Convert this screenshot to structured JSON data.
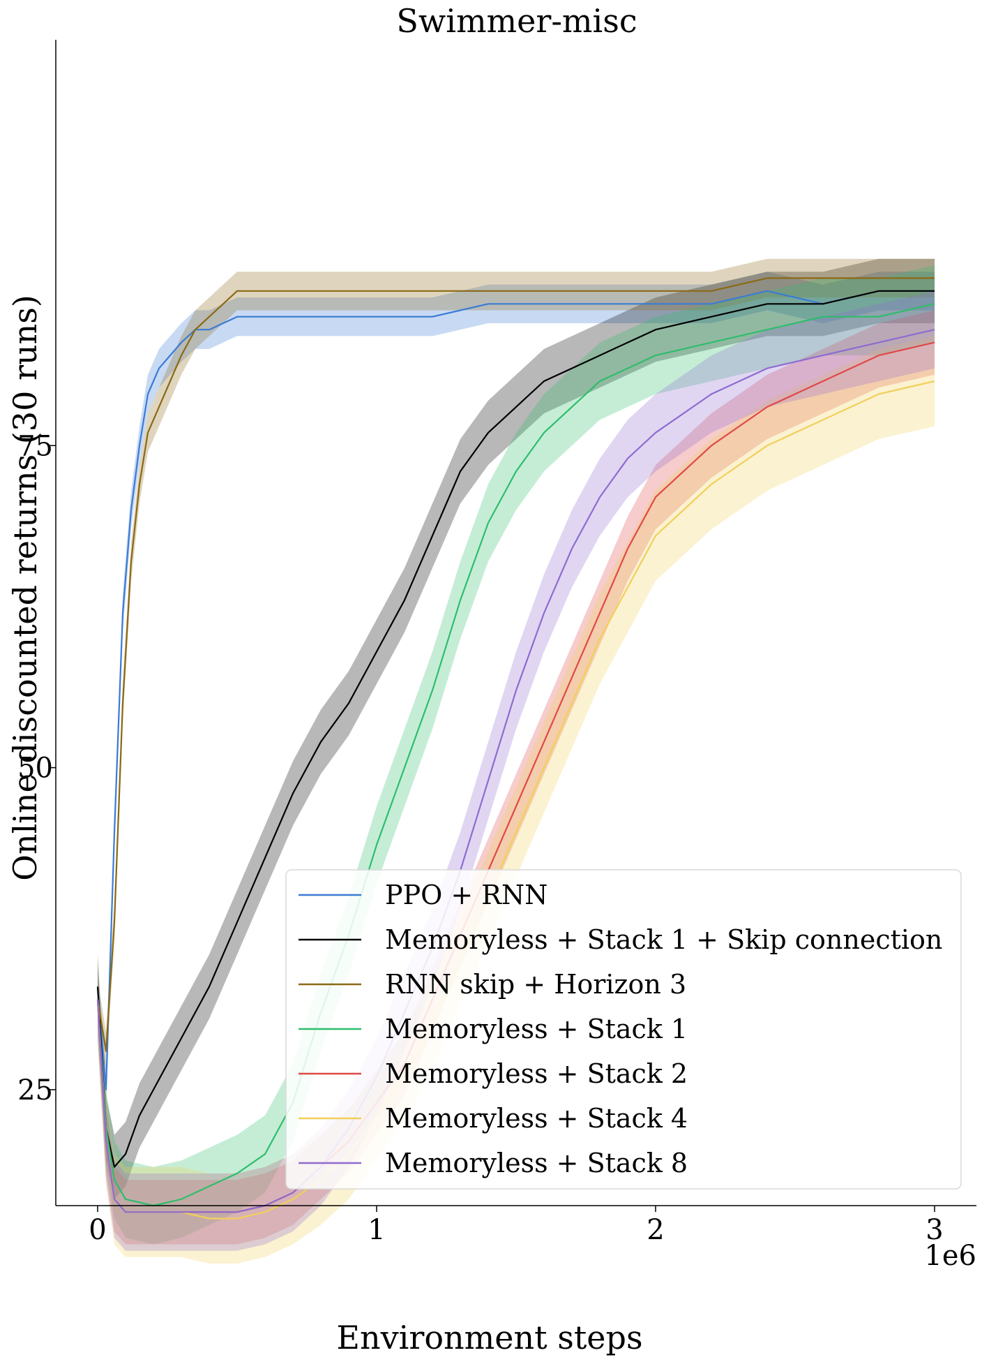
{
  "chart_data": {
    "type": "line",
    "title": "Swimmer-misc",
    "xlabel": "Environment steps",
    "ylabel": "Online discounted returns (30 runs)",
    "x_offset_label": "1e6",
    "xlim": [
      -0.15,
      3.15
    ],
    "ylim": [
      16,
      106.5
    ],
    "x_ticks": [
      0,
      1,
      2,
      3
    ],
    "x_tick_labels": [
      "0",
      "1",
      "2",
      "3"
    ],
    "y_ticks": [
      25,
      50,
      75
    ],
    "y_tick_labels": [
      "25",
      "50",
      "75"
    ],
    "grid": false,
    "legend_position": "lower-right",
    "series": [
      {
        "name": "PPO + RNN",
        "color": "#3a7bd5",
        "x": [
          0,
          0.03,
          0.06,
          0.09,
          0.12,
          0.15,
          0.18,
          0.22,
          0.26,
          0.3,
          0.35,
          0.4,
          0.5,
          0.6,
          0.8,
          1.0,
          1.2,
          1.4,
          1.6,
          1.8,
          2.0,
          2.2,
          2.4,
          2.6,
          2.8,
          3.0
        ],
        "y": [
          33,
          25,
          45,
          62,
          70,
          75,
          79,
          81,
          82,
          83,
          84,
          84,
          85,
          85,
          85,
          85,
          85,
          86,
          86,
          86,
          86,
          86,
          87,
          86,
          87,
          87
        ],
        "band": 1.5
      },
      {
        "name": "Memoryless + Stack 1 + Skip connection",
        "color": "#000000",
        "x": [
          0,
          0.03,
          0.06,
          0.1,
          0.15,
          0.2,
          0.3,
          0.4,
          0.5,
          0.6,
          0.7,
          0.8,
          0.9,
          1.0,
          1.1,
          1.2,
          1.3,
          1.4,
          1.5,
          1.6,
          1.7,
          1.8,
          1.9,
          2.0,
          2.2,
          2.4,
          2.6,
          2.8,
          3.0
        ],
        "y": [
          33,
          22,
          19,
          20,
          23,
          25,
          29,
          33,
          38,
          43,
          48,
          52,
          55,
          59,
          63,
          68,
          73,
          76,
          78,
          80,
          81,
          82,
          83,
          84,
          85,
          86,
          86,
          87,
          87
        ],
        "band": 2.5
      },
      {
        "name": "RNN skip + Horizon 3",
        "color": "#8b6914",
        "x": [
          0,
          0.03,
          0.06,
          0.09,
          0.12,
          0.15,
          0.18,
          0.22,
          0.26,
          0.3,
          0.35,
          0.4,
          0.45,
          0.5,
          0.6,
          0.8,
          1.0,
          1.2,
          1.4,
          1.6,
          1.8,
          2.0,
          2.2,
          2.4,
          2.6,
          2.8,
          3.0
        ],
        "y": [
          32,
          28,
          38,
          55,
          66,
          72,
          76,
          78,
          80,
          82,
          84,
          85,
          86,
          87,
          87,
          87,
          87,
          87,
          87,
          87,
          87,
          87,
          87,
          88,
          88,
          88,
          88
        ],
        "band": 1.5
      },
      {
        "name": "Memoryless + Stack 1",
        "color": "#2ebd6b",
        "x": [
          0,
          0.03,
          0.06,
          0.1,
          0.2,
          0.3,
          0.4,
          0.5,
          0.6,
          0.7,
          0.8,
          0.9,
          1.0,
          1.1,
          1.2,
          1.3,
          1.4,
          1.5,
          1.6,
          1.7,
          1.8,
          1.9,
          2.0,
          2.2,
          2.4,
          2.6,
          2.8,
          3.0
        ],
        "y": [
          32,
          22,
          18,
          16.5,
          16,
          16.5,
          17.5,
          18.5,
          20,
          24,
          31,
          37,
          44,
          50,
          56,
          63,
          69,
          73,
          76,
          78,
          80,
          81,
          82,
          83,
          84,
          85,
          85,
          86
        ],
        "band": 3
      },
      {
        "name": "Memoryless + Stack 2",
        "color": "#e04848",
        "x": [
          0,
          0.03,
          0.06,
          0.1,
          0.2,
          0.3,
          0.4,
          0.5,
          0.6,
          0.7,
          0.8,
          0.9,
          1.0,
          1.1,
          1.2,
          1.3,
          1.4,
          1.5,
          1.6,
          1.7,
          1.8,
          1.9,
          2.0,
          2.2,
          2.4,
          2.6,
          2.8,
          3.0
        ],
        "y": [
          32,
          21,
          16.5,
          15.5,
          15.5,
          15.5,
          15.5,
          15.5,
          16,
          17,
          19,
          21,
          24,
          27,
          32,
          37,
          42,
          47,
          52,
          57,
          62,
          67,
          71,
          75,
          78,
          80,
          82,
          83
        ],
        "band": 2.5
      },
      {
        "name": "Memoryless + Stack 4",
        "color": "#f2cf5b",
        "x": [
          0,
          0.03,
          0.06,
          0.1,
          0.2,
          0.3,
          0.4,
          0.5,
          0.6,
          0.7,
          0.8,
          0.9,
          1.0,
          1.1,
          1.2,
          1.3,
          1.4,
          1.5,
          1.6,
          1.7,
          1.8,
          1.9,
          2.0,
          2.2,
          2.4,
          2.6,
          2.8,
          3.0
        ],
        "y": [
          32,
          21,
          16.5,
          15.5,
          15.5,
          15.5,
          15,
          15,
          15.5,
          16.5,
          18,
          20,
          23,
          26,
          30,
          35,
          40,
          45,
          50,
          55,
          60,
          64,
          68,
          72,
          75,
          77,
          79,
          80
        ],
        "band": 3.5
      },
      {
        "name": "Memoryless + Stack 8",
        "color": "#8e6bd0",
        "x": [
          0,
          0.03,
          0.06,
          0.1,
          0.2,
          0.3,
          0.4,
          0.5,
          0.6,
          0.7,
          0.8,
          0.9,
          1.0,
          1.1,
          1.2,
          1.3,
          1.4,
          1.5,
          1.6,
          1.7,
          1.8,
          1.9,
          2.0,
          2.2,
          2.4,
          2.6,
          2.8,
          3.0
        ],
        "y": [
          32,
          21,
          16.5,
          15.5,
          15.5,
          15.5,
          15.5,
          15.5,
          16,
          17,
          19,
          22,
          26,
          31,
          36,
          42,
          49,
          56,
          62,
          67,
          71,
          74,
          76,
          79,
          81,
          82,
          83,
          84
        ],
        "band": 3
      }
    ]
  }
}
